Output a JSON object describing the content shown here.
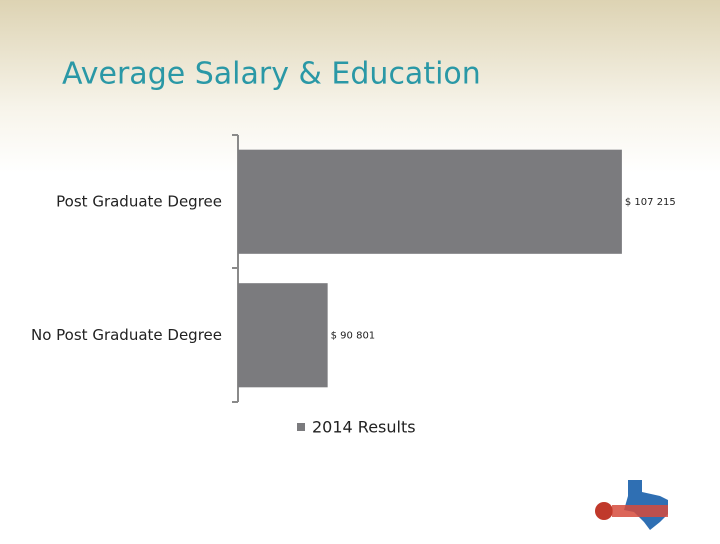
{
  "chart_data": {
    "type": "hbar",
    "title": "Average Salary & Education",
    "categories": [
      "Post Graduate Degree",
      "No Post Graduate Degree"
    ],
    "series": [
      {
        "name": "2014 Results",
        "color": "#7b7b7e",
        "values": [
          107215,
          90801
        ],
        "value_labels": [
          "$ 107 215",
          "$ 90 801"
        ]
      }
    ],
    "xlim": [
      85800,
      107500
    ],
    "legend": "bottom"
  }
}
